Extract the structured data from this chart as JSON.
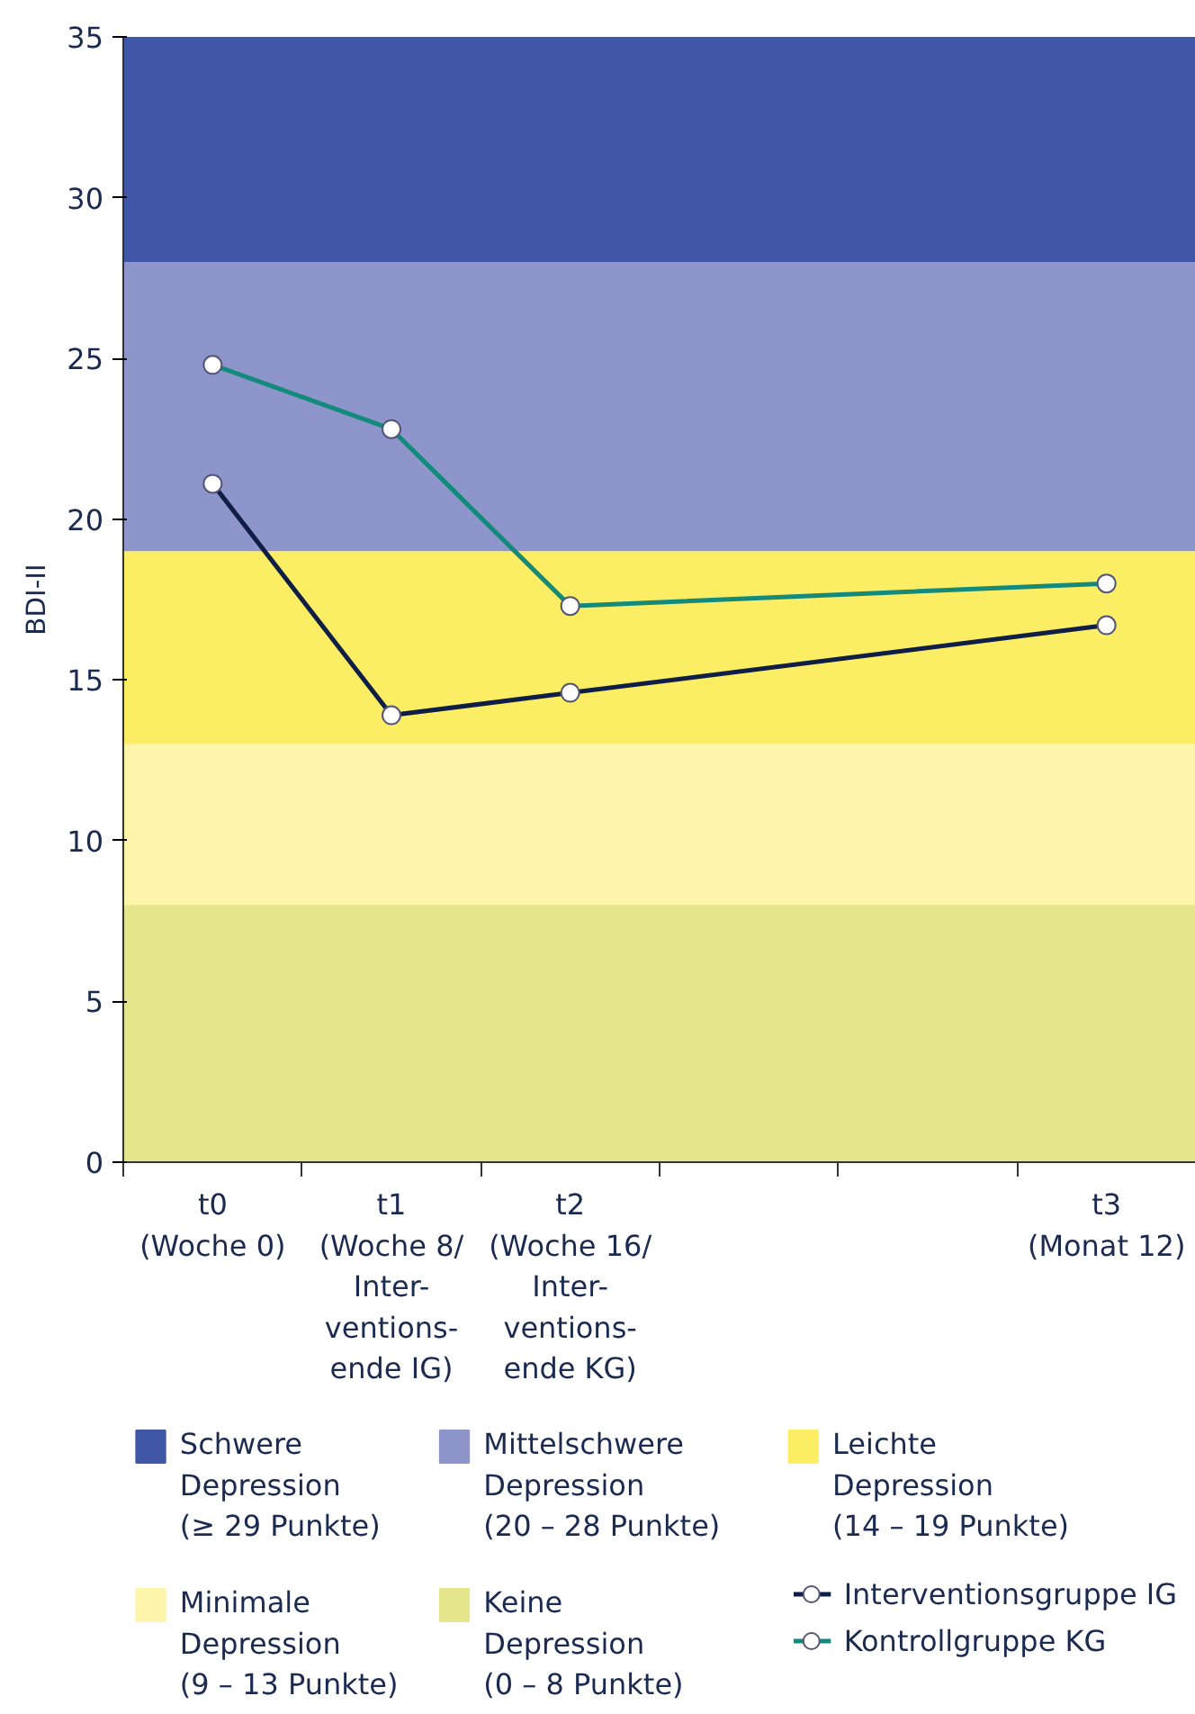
{
  "chart_data": {
    "type": "line",
    "ylabel": "BDI-II",
    "categories": [
      "t0\n(Woche 0)",
      "t1\n(Woche 8/\nInter-\nventions-\nende IG)",
      "t2\n(Woche 16/\nInter-\nventions-\nende KG)",
      null,
      null,
      "t3\n(Monat 12)"
    ],
    "series": [
      {
        "name": "Interventionsgruppe IG",
        "color": "#0f1e45",
        "values": [
          21.1,
          13.9,
          14.6,
          null,
          null,
          16.7
        ]
      },
      {
        "name": "Kontrollgruppe KG",
        "color": "#138a7c",
        "values": [
          24.8,
          22.8,
          17.3,
          null,
          null,
          18.0
        ]
      }
    ],
    "bands": [
      {
        "axis": "y",
        "from": 28,
        "to": 35,
        "label": "Schwere\nDepression\n(≥ 29 Punkte)",
        "color": "#3f57a6"
      },
      {
        "axis": "y",
        "from": 19,
        "to": 28,
        "label": "Mittelschwere\nDepression\n(20 – 28 Punkte)",
        "color": "#8e95ca"
      },
      {
        "axis": "y",
        "from": 13,
        "to": 19,
        "label": "Leichte\nDepression\n(14 – 19 Punkte)",
        "color": "#fcee64"
      },
      {
        "axis": "y",
        "from": 8,
        "to": 13,
        "label": "Minimale\nDepression\n(9 – 13 Punkte)",
        "color": "#fdf5aa"
      },
      {
        "axis": "y",
        "from": 0,
        "to": 8,
        "label": "Keine\nDepression\n(0 – 8 Punkte)",
        "color": "#e5e68c"
      }
    ],
    "ylim": [
      0,
      35
    ],
    "yticks": [
      0,
      5,
      10,
      15,
      20,
      25,
      30,
      35
    ],
    "grid": false,
    "legend": "bottom",
    "marker": "circle",
    "line_style": "solid"
  }
}
